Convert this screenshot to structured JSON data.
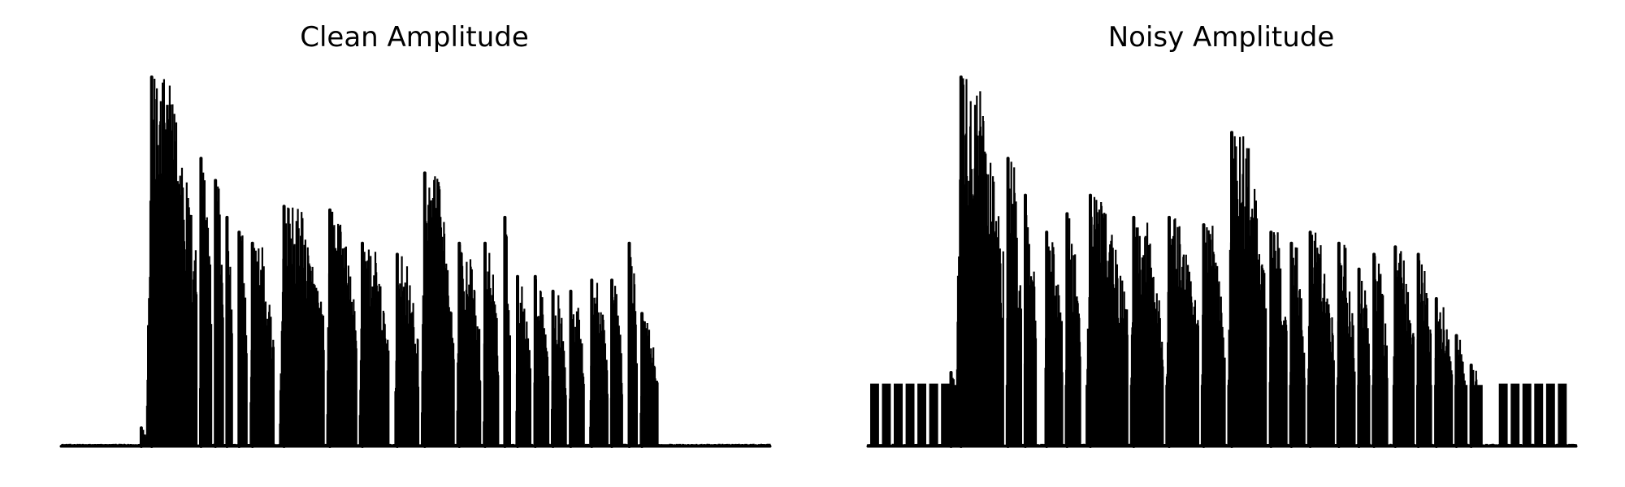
{
  "chart_data": [
    {
      "type": "area",
      "title": "Clean Amplitude",
      "xlabel": "",
      "ylabel": "",
      "axes_visible": false,
      "grid": false,
      "line_color": "#000000",
      "fill_color": "#000000",
      "xlim": [
        0,
        240
      ],
      "ylim": [
        0,
        1
      ],
      "bursts": [
        {
          "start": 27,
          "end": 29,
          "peak": 0.05
        },
        {
          "start": 29,
          "end": 46,
          "peak": 1.0
        },
        {
          "start": 47,
          "end": 51,
          "peak": 0.78
        },
        {
          "start": 52,
          "end": 55,
          "peak": 0.72
        },
        {
          "start": 56,
          "end": 58,
          "peak": 0.62
        },
        {
          "start": 60,
          "end": 63,
          "peak": 0.58
        },
        {
          "start": 64,
          "end": 72,
          "peak": 0.55
        },
        {
          "start": 74,
          "end": 89,
          "peak": 0.65
        },
        {
          "start": 90,
          "end": 100,
          "peak": 0.64
        },
        {
          "start": 101,
          "end": 111,
          "peak": 0.55
        },
        {
          "start": 113,
          "end": 121,
          "peak": 0.52
        },
        {
          "start": 122,
          "end": 133,
          "peak": 0.74
        },
        {
          "start": 134,
          "end": 142,
          "peak": 0.55
        },
        {
          "start": 143,
          "end": 148,
          "peak": 0.55
        },
        {
          "start": 150,
          "end": 152,
          "peak": 0.62
        },
        {
          "start": 154,
          "end": 159,
          "peak": 0.46
        },
        {
          "start": 160,
          "end": 165,
          "peak": 0.46
        },
        {
          "start": 166,
          "end": 171,
          "peak": 0.42
        },
        {
          "start": 172,
          "end": 177,
          "peak": 0.42
        },
        {
          "start": 179,
          "end": 185,
          "peak": 0.45
        },
        {
          "start": 186,
          "end": 190,
          "peak": 0.45
        },
        {
          "start": 192,
          "end": 195,
          "peak": 0.55
        },
        {
          "start": 196,
          "end": 202,
          "peak": 0.36
        }
      ]
    },
    {
      "type": "area",
      "title": "Noisy Amplitude",
      "xlabel": "",
      "ylabel": "",
      "axes_visible": false,
      "grid": false,
      "line_color": "#000000",
      "fill_color": "#000000",
      "xlim": [
        0,
        240
      ],
      "ylim": [
        0,
        1
      ],
      "noise_floor": 0.17,
      "noise_pulses_left": [
        1,
        5,
        9,
        13,
        17,
        21,
        25
      ],
      "noise_pulses_right": [
        214,
        218,
        222,
        226,
        230,
        234
      ],
      "bursts": [
        {
          "start": 28,
          "end": 30,
          "peak": 0.2
        },
        {
          "start": 30,
          "end": 46,
          "peak": 1.0
        },
        {
          "start": 47,
          "end": 52,
          "peak": 0.78
        },
        {
          "start": 53,
          "end": 57,
          "peak": 0.68
        },
        {
          "start": 60,
          "end": 66,
          "peak": 0.58
        },
        {
          "start": 67,
          "end": 72,
          "peak": 0.63
        },
        {
          "start": 74,
          "end": 88,
          "peak": 0.68
        },
        {
          "start": 89,
          "end": 100,
          "peak": 0.62
        },
        {
          "start": 101,
          "end": 112,
          "peak": 0.62
        },
        {
          "start": 113,
          "end": 121,
          "peak": 0.6
        },
        {
          "start": 122,
          "end": 135,
          "peak": 0.85
        },
        {
          "start": 136,
          "end": 142,
          "peak": 0.58
        },
        {
          "start": 143,
          "end": 148,
          "peak": 0.55
        },
        {
          "start": 149,
          "end": 158,
          "peak": 0.58
        },
        {
          "start": 159,
          "end": 165,
          "peak": 0.55
        },
        {
          "start": 166,
          "end": 170,
          "peak": 0.48
        },
        {
          "start": 171,
          "end": 176,
          "peak": 0.52
        },
        {
          "start": 178,
          "end": 185,
          "peak": 0.54
        },
        {
          "start": 186,
          "end": 191,
          "peak": 0.52
        },
        {
          "start": 192,
          "end": 198,
          "peak": 0.4
        },
        {
          "start": 199,
          "end": 203,
          "peak": 0.3
        },
        {
          "start": 204,
          "end": 208,
          "peak": 0.22
        }
      ]
    }
  ]
}
